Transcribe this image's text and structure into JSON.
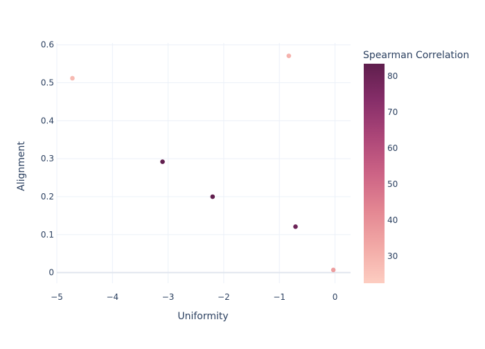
{
  "chart_data": {
    "type": "scatter",
    "title": "",
    "xlabel": "Uniformity",
    "ylabel": "Alignment",
    "xlim": [
      -5.0,
      0.28
    ],
    "ylim": [
      -0.028,
      0.605
    ],
    "xticks": [
      -5,
      -4,
      -3,
      -2,
      -1,
      0
    ],
    "yticks": [
      0,
      0.1,
      0.2,
      0.3,
      0.4,
      0.5,
      0.6
    ],
    "grid": true,
    "points": [
      {
        "x": -4.72,
        "y": 0.512,
        "value": 28
      },
      {
        "x": -3.1,
        "y": 0.292,
        "value": 83
      },
      {
        "x": -2.2,
        "y": 0.2,
        "value": 83
      },
      {
        "x": -0.83,
        "y": 0.571,
        "value": 30
      },
      {
        "x": -0.71,
        "y": 0.121,
        "value": 80
      },
      {
        "x": -0.03,
        "y": 0.007,
        "value": 36
      }
    ],
    "colorbar": {
      "title": "Spearman Correlation",
      "min": 22.5,
      "max": 83.5,
      "ticks": [
        30,
        40,
        50,
        60,
        70,
        80
      ],
      "colors": [
        "#fdcdc1",
        "#f2a9a6",
        "#e38692",
        "#cc6385",
        "#ac4678",
        "#862e69",
        "#5f1e4d"
      ]
    }
  }
}
